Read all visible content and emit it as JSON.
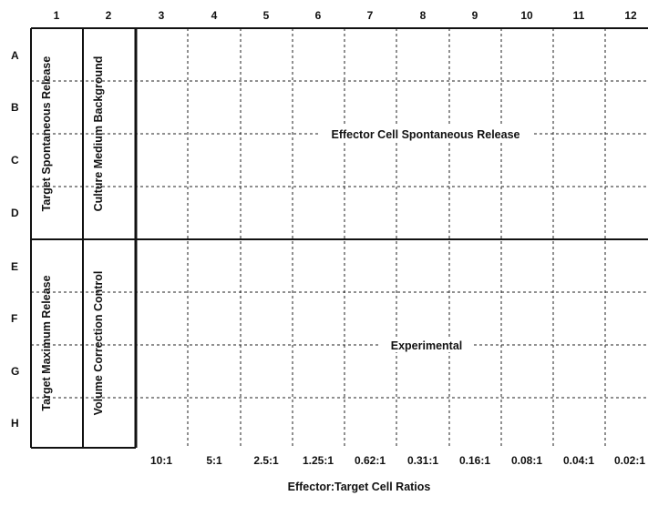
{
  "columns": [
    "1",
    "2",
    "3",
    "4",
    "5",
    "6",
    "7",
    "8",
    "9",
    "10",
    "11",
    "12"
  ],
  "rows": [
    "A",
    "B",
    "C",
    "D",
    "E",
    "F",
    "G",
    "H"
  ],
  "regions": {
    "target_spontaneous": "Target Spontaneous Release",
    "culture_medium": "Culture Medium Background",
    "target_maximum": "Target Maximum Release",
    "volume_correction": "Volume Correction Control",
    "effector_spontaneous": "Effector Cell Spontaneous Release",
    "experimental": "Experimental"
  },
  "ratios": [
    "10:1",
    "5:1",
    "2.5:1",
    "1.25:1",
    "0.62:1",
    "0.31:1",
    "0.16:1",
    "0.08:1",
    "0.04:1",
    "0.02:1"
  ],
  "axis_title": "Effector:Target Cell Ratios"
}
